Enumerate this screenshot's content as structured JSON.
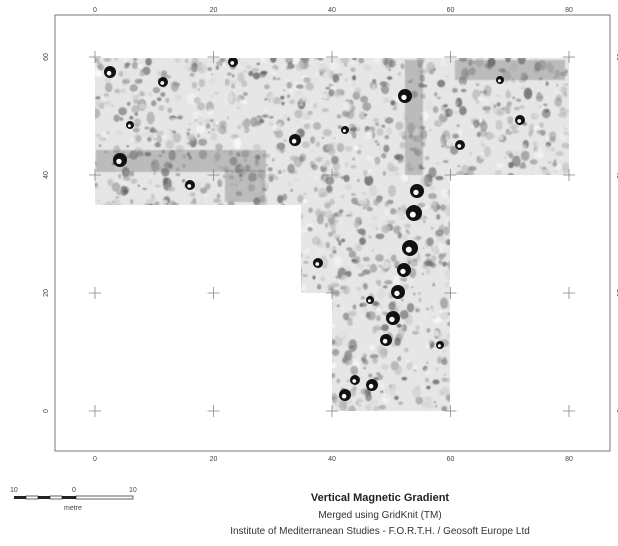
{
  "map": {
    "x_ticks": [
      "0",
      "20",
      "40",
      "60",
      "80"
    ],
    "y_ticks": [
      "0",
      "20",
      "40",
      "60"
    ],
    "survey_colors": {
      "background": "#ffffff",
      "survey_base": "#e6e6e6",
      "anomaly_dark": "#111111",
      "anomaly_mid": "#6b6b6b",
      "anomaly_light": "#fafafa",
      "frame": "#777777",
      "crosshair": "#888888"
    }
  },
  "scale_bar": {
    "left_label": "10",
    "mid_label": "0",
    "right_label": "10",
    "unit": "metre"
  },
  "caption": {
    "title": "Vertical Magnetic Gradient",
    "subtitle": "Merged using GridKnit (TM)",
    "credit": "Institute of Mediterranean Studies - F.O.R.T.H. / Geosoft Europe Ltd"
  }
}
